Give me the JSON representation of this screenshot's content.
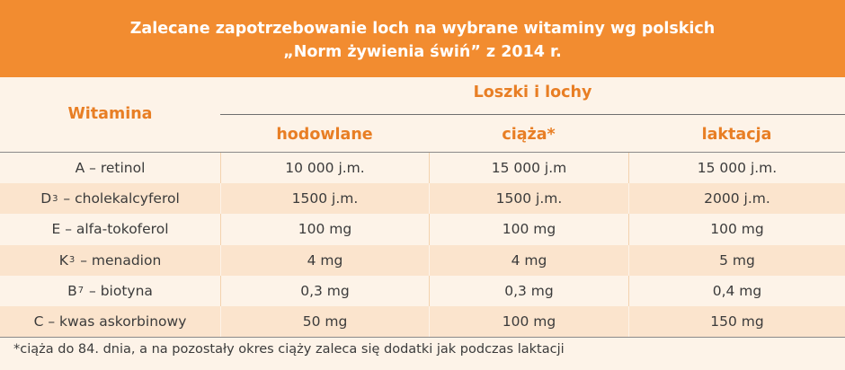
{
  "title": {
    "line1": "Zalecane zapotrzebowanie loch na wybrane witaminy wg polskich",
    "line2": "„Norm żywienia świń” z 2014 r."
  },
  "table": {
    "col_vitamin": "Witamina",
    "group_header": "Loszki i lochy",
    "sub_headers": [
      "hodowlane",
      "ciąża*",
      "laktacja"
    ],
    "rows": [
      {
        "name_pre": "A – retinol",
        "name_sub": "",
        "name_post": "",
        "values": [
          "10 000 j.m.",
          "15 000 j.m",
          "15 000 j.m."
        ]
      },
      {
        "name_pre": "D",
        "name_sub": "3",
        "name_post": " – cholekalcyferol",
        "values": [
          "1500 j.m.",
          "1500 j.m.",
          "2000 j.m."
        ]
      },
      {
        "name_pre": "E – alfa-tokoferol",
        "name_sub": "",
        "name_post": "",
        "values": [
          "100 mg",
          "100 mg",
          "100 mg"
        ]
      },
      {
        "name_pre": "K",
        "name_sub": "3",
        "name_post": " – menadion",
        "values": [
          "4 mg",
          "4 mg",
          "5 mg"
        ]
      },
      {
        "name_pre": "B",
        "name_sub": "7",
        "name_post": " – biotyna",
        "values": [
          "0,3 mg",
          "0,3 mg",
          "0,4 mg"
        ]
      },
      {
        "name_pre": "C – kwas askorbinowy",
        "name_sub": "",
        "name_post": "",
        "values": [
          "50 mg",
          "100 mg",
          "150 mg"
        ]
      }
    ]
  },
  "footnote": "*ciąża do 84. dnia, a na pozostały okres ciąży zaleca się dodatki jak podczas laktacji",
  "colors": {
    "accent": "#f28c30",
    "header_text": "#e87e24",
    "row_alt": "#fbe4cd",
    "background": "#fdf3e8"
  }
}
